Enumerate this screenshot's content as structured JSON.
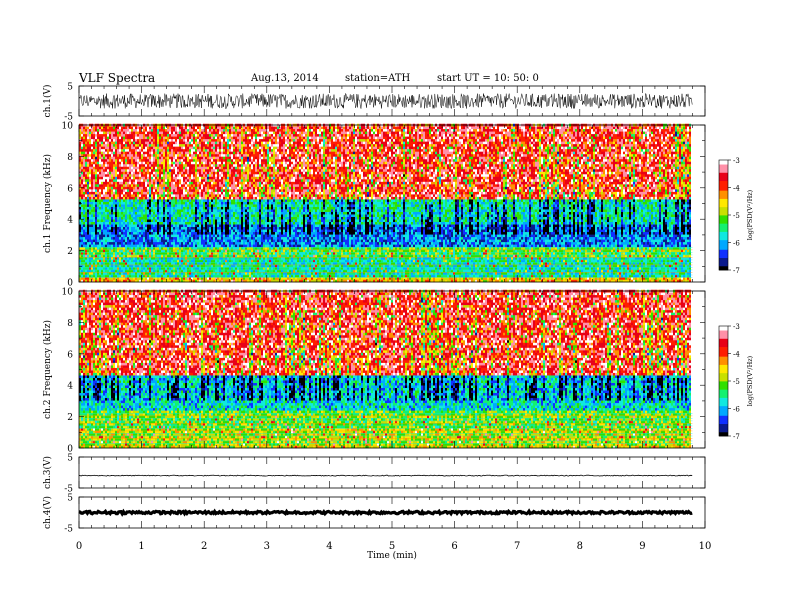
{
  "header": {
    "title": "VLF  Spectra",
    "date": "Aug.13, 2014",
    "station": "station=ATH",
    "start_ut": "start  UT  =   10: 50: 0"
  },
  "chart_data": [
    {
      "type": "line",
      "name": "ch1-waveform",
      "ylabel": "ch.1(V)",
      "ylim": [
        -5,
        5
      ],
      "yticks": [
        "5",
        "-5"
      ],
      "description": "dense noisy waveform, amplitude mostly within about -2.5 to 2.5 V",
      "amplitude_range": [
        -2.5,
        2.5
      ]
    },
    {
      "type": "heatmap",
      "name": "ch1-spectrogram",
      "ylabel": "ch.1 Frequency (kHz)",
      "ylim": [
        0,
        10
      ],
      "yticks": [
        "0",
        "2",
        "4",
        "6",
        "8",
        "10"
      ],
      "xlim": [
        0,
        10
      ],
      "data_extent_min": 9.8,
      "colorbar": {
        "label": "log(PSD(V²/Hz)",
        "ticks": [
          "-3",
          "-4",
          "-5",
          "-6",
          "-7"
        ],
        "range": [
          -7,
          -3
        ]
      },
      "bands": [
        {
          "from_khz": 0,
          "to_khz": 0.3,
          "level": -4.5
        },
        {
          "from_khz": 0.3,
          "to_khz": 1.5,
          "level": -5.6
        },
        {
          "from_khz": 1.5,
          "to_khz": 2.2,
          "level": -5.2
        },
        {
          "from_khz": 2.2,
          "to_khz": 3.6,
          "level": -6.2
        },
        {
          "from_khz": 3.6,
          "to_khz": 5.2,
          "level": -5.6
        },
        {
          "from_khz": 5.2,
          "to_khz": 10,
          "level": -3.6
        }
      ]
    },
    {
      "type": "heatmap",
      "name": "ch2-spectrogram",
      "ylabel": "ch.2 Frequency (kHz)",
      "ylim": [
        0,
        10
      ],
      "yticks": [
        "0",
        "2",
        "4",
        "6",
        "8",
        "10"
      ],
      "xlim": [
        0,
        10
      ],
      "data_extent_min": 9.8,
      "colorbar": {
        "label": "log(PSD(V²/Hz)",
        "ticks": [
          "-3",
          "-4",
          "-5",
          "-6",
          "-7"
        ],
        "range": [
          -7,
          -3
        ]
      },
      "bands": [
        {
          "from_khz": 0,
          "to_khz": 1.2,
          "level": -4.8
        },
        {
          "from_khz": 1.2,
          "to_khz": 2.4,
          "level": -5.1
        },
        {
          "from_khz": 2.4,
          "to_khz": 4.5,
          "level": -5.8
        },
        {
          "from_khz": 4.5,
          "to_khz": 10,
          "level": -3.6
        }
      ]
    },
    {
      "type": "line",
      "name": "ch3-waveform",
      "ylabel": "ch.3(V)",
      "ylim": [
        -5,
        5
      ],
      "yticks": [
        "5",
        "-5"
      ],
      "flat_level": -1,
      "amplitude_range": [
        -0.15,
        0.15
      ]
    },
    {
      "type": "line",
      "name": "ch4-waveform",
      "ylabel": "ch.4(V)",
      "ylim": [
        -5,
        5
      ],
      "yticks": [
        "5",
        "-5"
      ],
      "flat_level": 0,
      "amplitude_range": [
        -0.4,
        0.4
      ]
    }
  ],
  "x_axis": {
    "label": "Time  (min)",
    "ticks": [
      "0",
      "1",
      "2",
      "3",
      "4",
      "5",
      "6",
      "7",
      "8",
      "9",
      "10"
    ],
    "range": [
      0,
      10
    ]
  },
  "colorscale": [
    "#000000",
    "#0b1a8c",
    "#1030ff",
    "#00a8ff",
    "#10e8e0",
    "#14f070",
    "#30e000",
    "#c8e000",
    "#ffe800",
    "#ff9000",
    "#ff1e00",
    "#e80018",
    "#ff90a8",
    "#ffffff"
  ]
}
